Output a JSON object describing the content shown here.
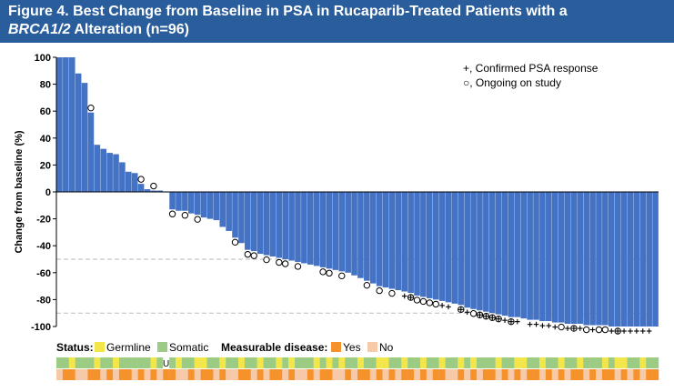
{
  "header": {
    "line1": "Figure 4. Best Change from Baseline in PSA in Rucaparib-Treated Patients with a",
    "line2_italic": "BRCA1/2",
    "line2_rest": " Alteration (n=96)"
  },
  "colors": {
    "header_bg": "#2a5d9c",
    "bar": "#4472c4",
    "germline": "#f3e64a",
    "somatic": "#9ccc83",
    "md_yes": "#f5922b",
    "md_no": "#f6c9a8",
    "ref_line": "#bbbbbb"
  },
  "chart_data": {
    "type": "bar",
    "ylabel": "Change from baseline (%)",
    "ylim": [
      -100,
      100
    ],
    "yticks": [
      100,
      80,
      60,
      40,
      20,
      0,
      -20,
      -40,
      -60,
      -80,
      -100
    ],
    "reference_lines": [
      -50,
      -90
    ],
    "values": [
      100,
      100,
      100,
      88,
      81,
      59,
      35,
      32,
      29,
      28,
      22,
      15,
      14,
      6,
      2,
      1,
      1,
      0,
      -13,
      -14,
      -14,
      -16,
      -17,
      -19,
      -20,
      -21,
      -26,
      -29,
      -34,
      -38,
      -43,
      -44,
      -46,
      -47,
      -48,
      -49,
      -50,
      -51,
      -52,
      -53,
      -54,
      -55,
      -56,
      -57,
      -58,
      -59,
      -60,
      -62,
      -64,
      -66,
      -68,
      -70,
      -71,
      -72,
      -73,
      -74,
      -75,
      -77,
      -78,
      -79,
      -80,
      -81,
      -82,
      -83,
      -84,
      -86,
      -87,
      -88,
      -89,
      -90,
      -91,
      -92,
      -93,
      -93,
      -94,
      -95,
      -95,
      -96,
      -96,
      -97,
      -97,
      -98,
      -98,
      -98,
      -99,
      -99,
      -99,
      -99,
      -100,
      -100,
      -100,
      -100,
      -100,
      -100,
      -100,
      -100
    ],
    "confirmed_psa_response": [
      55,
      56,
      61,
      62,
      64,
      65,
      67,
      68,
      69,
      70,
      71,
      72,
      73,
      75,
      76,
      77,
      78,
      79,
      81,
      82,
      83,
      85,
      88,
      89,
      90,
      91,
      92,
      93,
      94,
      97,
      98,
      100,
      101,
      102,
      104,
      105,
      107,
      108,
      109,
      110,
      111,
      112,
      113,
      114,
      115,
      117,
      118,
      119,
      121,
      122,
      123,
      124,
      126,
      127,
      128,
      129,
      130,
      131,
      132,
      133,
      134,
      135,
      136,
      137,
      138,
      140,
      141,
      142,
      143,
      144,
      145,
      146,
      147,
      148,
      149,
      150,
      151,
      152,
      153,
      154,
      155,
      156,
      157,
      158,
      159,
      160
    ],
    "ongoing_on_study": [
      5,
      13,
      15,
      18,
      20,
      22,
      28,
      30,
      31,
      33,
      35,
      36,
      38,
      42,
      43,
      45,
      49,
      51,
      53,
      56,
      57,
      58,
      59,
      60,
      64,
      66,
      67,
      68,
      69,
      70,
      72,
      80,
      82,
      84,
      86,
      87,
      89
    ],
    "status": [
      "S",
      "S",
      "G",
      "S",
      "S",
      "S",
      "G",
      "S",
      "S",
      "G",
      "S",
      "S",
      "S",
      "S",
      "S",
      "G",
      "S",
      "S",
      "S",
      "G",
      "S",
      "S",
      "G",
      "G",
      "S",
      "S",
      "G",
      "S",
      "S",
      "G",
      "S",
      "S",
      "G",
      "S",
      "S",
      "G",
      "S",
      "G",
      "S",
      "S",
      "S",
      "G",
      "S",
      "G",
      "S",
      "G",
      "S",
      "S",
      "G",
      "S",
      "S",
      "G",
      "G",
      "S",
      "S",
      "G",
      "S",
      "S",
      "G",
      "S",
      "S",
      "G",
      "S",
      "S",
      "G",
      "S",
      "G",
      "S",
      "S",
      "S",
      "G",
      "S",
      "S",
      "G",
      "G",
      "S",
      "S",
      "G",
      "S",
      "S",
      "G",
      "S",
      "S",
      "G",
      "S",
      "S",
      "S",
      "G",
      "S",
      "G",
      "G",
      "S",
      "S",
      "G",
      "S",
      "S"
    ],
    "unknown_status_label": "U",
    "unknown_status_index": 17,
    "measurable_disease": [
      "N",
      "Y",
      "Y",
      "N",
      "N",
      "Y",
      "Y",
      "N",
      "Y",
      "N",
      "Y",
      "Y",
      "N",
      "Y",
      "N",
      "Y",
      "N",
      "Y",
      "Y",
      "N",
      "N",
      "Y",
      "N",
      "Y",
      "Y",
      "N",
      "Y",
      "N",
      "N",
      "Y",
      "Y",
      "N",
      "Y",
      "N",
      "Y",
      "Y",
      "N",
      "Y",
      "N",
      "N",
      "Y",
      "N",
      "Y",
      "Y",
      "N",
      "N",
      "Y",
      "N",
      "Y",
      "Y",
      "N",
      "Y",
      "N",
      "Y",
      "N",
      "Y",
      "Y",
      "N",
      "Y",
      "N",
      "Y",
      "Y",
      "N",
      "N",
      "Y",
      "N",
      "Y",
      "N",
      "Y",
      "Y",
      "N",
      "Y",
      "N",
      "Y",
      "N",
      "Y",
      "Y",
      "N",
      "Y",
      "N",
      "Y",
      "N",
      "Y",
      "Y",
      "N",
      "Y",
      "N",
      "Y",
      "Y",
      "N",
      "Y",
      "N",
      "Y",
      "N",
      "Y",
      "Y"
    ],
    "legend": {
      "psa_response": "+, Confirmed PSA response",
      "ongoing": "○, Ongoing on study"
    },
    "status_legend": {
      "title": "Status:",
      "germline": "Germline",
      "somatic": "Somatic"
    },
    "md_legend": {
      "title": "Measurable disease:",
      "yes": "Yes",
      "no": "No"
    }
  }
}
